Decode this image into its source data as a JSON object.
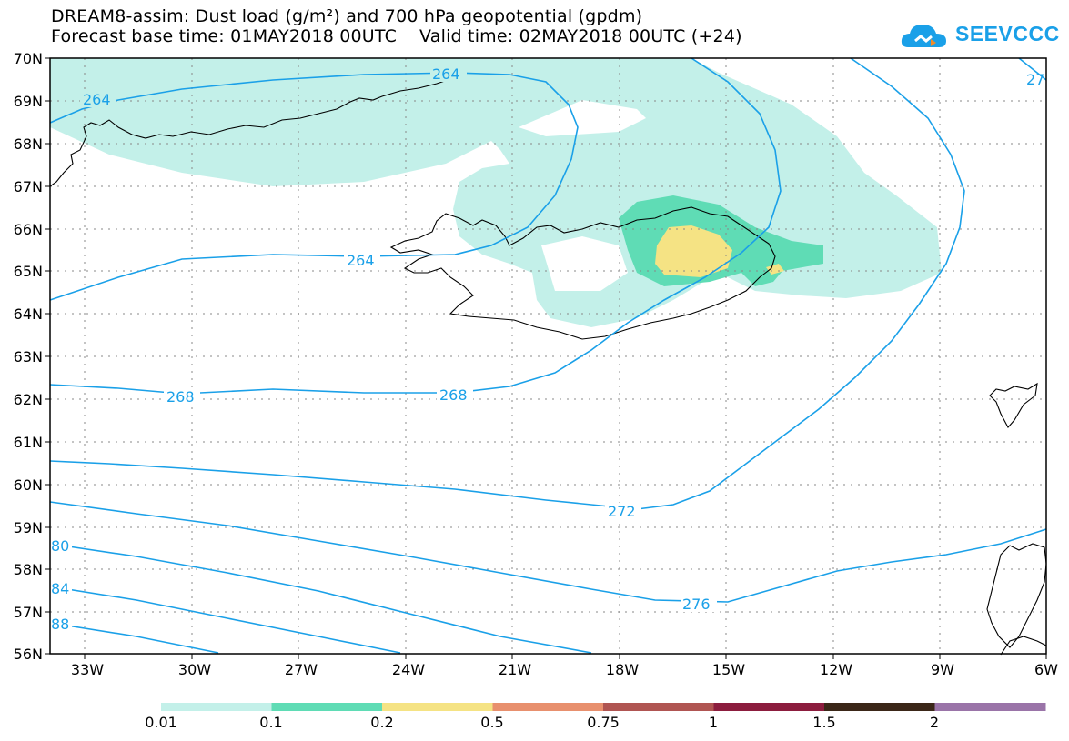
{
  "title": {
    "line1": "DREAM8-assim: Dust load (g/m²) and 700 hPa geopotential (gpdm)",
    "line2": "Forecast base time: 01MAY2018 00UTC    Valid time: 02MAY2018 00UTC (+24)"
  },
  "logo": {
    "text": "SEEVCCC"
  },
  "axes": {
    "lat_labels": [
      "70N",
      "69N",
      "68N",
      "67N",
      "66N",
      "65N",
      "64N",
      "63N",
      "62N",
      "61N",
      "60N",
      "59N",
      "58N",
      "57N",
      "56N"
    ],
    "lon_labels": [
      "33W",
      "30W",
      "27W",
      "24W",
      "21W",
      "18W",
      "15W",
      "12W",
      "9W",
      "6W"
    ]
  },
  "contours": {
    "color": "#1aa0e8",
    "labels": [
      "264",
      "264",
      "264",
      "268",
      "268",
      "272",
      "276",
      "80",
      "84",
      "88",
      "27"
    ]
  },
  "colorbar": {
    "ticks": [
      "0.01",
      "0.1",
      "0.2",
      "0.5",
      "0.75",
      "1",
      "1.5",
      "2"
    ],
    "colors": [
      "#c3f0e9",
      "#5fdcb5",
      "#f5e384",
      "#e8906e",
      "#b05552",
      "#8c1d3e",
      "#3b2718",
      "#9a74a8"
    ]
  },
  "dust_colors": {
    "low": "#c3f0e9",
    "mid": "#5fdcb5",
    "high": "#f5e384"
  }
}
